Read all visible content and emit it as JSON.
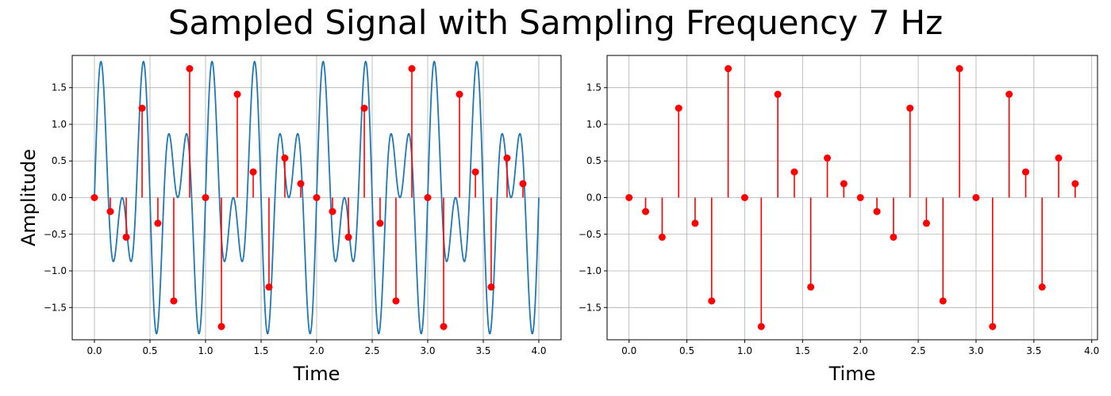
{
  "title": "Sampled Signal with Sampling Frequency 7 Hz",
  "colors": {
    "signal": "#1f77b4",
    "samples": "#ff0000",
    "grid": "#b0b0b0"
  },
  "chart_data": [
    {
      "type": "line",
      "panel": "left",
      "xlabel": "Time",
      "ylabel": "Amplitude",
      "xlim": [
        -0.2,
        4.2
      ],
      "ylim": [
        -1.94,
        1.94
      ],
      "xticks": [
        0.0,
        0.5,
        1.0,
        1.5,
        2.0,
        2.5,
        3.0,
        3.5,
        4.0
      ],
      "xtick_labels": [
        "0.0",
        "0.5",
        "1.0",
        "1.5",
        "2.0",
        "2.5",
        "3.0",
        "3.5",
        "4.0"
      ],
      "yticks": [
        -1.5,
        -1.0,
        -0.5,
        0.0,
        0.5,
        1.0,
        1.5
      ],
      "ytick_labels": [
        "−1.5",
        "−1.0",
        "−0.5",
        "0.0",
        "0.5",
        "1.0",
        "1.5"
      ],
      "grid": true,
      "series": [
        {
          "kind": "continuous-signal",
          "color": "#1f77b4",
          "x_range": [
            0,
            4
          ],
          "components": [
            {
              "amplitude": 1,
              "frequency_hz": 3
            },
            {
              "amplitude": 1,
              "frequency_hz": 5
            }
          ]
        },
        {
          "kind": "stem",
          "color": "#ff0000",
          "x": [
            0.0,
            0.143,
            0.286,
            0.429,
            0.571,
            0.714,
            0.857,
            1.0,
            1.143,
            1.286,
            1.429,
            1.571,
            1.714,
            1.857,
            2.0,
            2.143,
            2.286,
            2.429,
            2.571,
            2.714,
            2.857,
            3.0,
            3.143,
            3.286,
            3.429,
            3.571,
            3.714,
            3.857
          ],
          "y": [
            0.0,
            -0.19,
            -0.54,
            1.22,
            -0.35,
            -1.41,
            1.76,
            0.0,
            -1.76,
            1.41,
            0.35,
            -1.22,
            0.54,
            0.19,
            0.0,
            -0.19,
            -0.54,
            1.22,
            -0.35,
            -1.41,
            1.76,
            0.0,
            -1.76,
            1.41,
            0.35,
            -1.22,
            0.54,
            0.19
          ]
        }
      ]
    },
    {
      "type": "stem",
      "panel": "right",
      "xlabel": "Time",
      "ylabel": "",
      "xlim": [
        -0.19,
        4.05
      ],
      "ylim": [
        -1.94,
        1.94
      ],
      "xticks": [
        0.0,
        0.5,
        1.0,
        1.5,
        2.0,
        2.5,
        3.0,
        3.5,
        4.0
      ],
      "xtick_labels": [
        "0.0",
        "0.5",
        "1.0",
        "1.5",
        "2.0",
        "2.5",
        "3.0",
        "3.5",
        "4.0"
      ],
      "yticks": [
        -1.5,
        -1.0,
        -0.5,
        0.0,
        0.5,
        1.0,
        1.5
      ],
      "ytick_labels": [
        "−1.5",
        "−1.0",
        "−0.5",
        "0.0",
        "0.5",
        "1.0",
        "1.5"
      ],
      "grid": true,
      "series": [
        {
          "kind": "stem",
          "color": "#ff0000",
          "x": [
            0.0,
            0.143,
            0.286,
            0.429,
            0.571,
            0.714,
            0.857,
            1.0,
            1.143,
            1.286,
            1.429,
            1.571,
            1.714,
            1.857,
            2.0,
            2.143,
            2.286,
            2.429,
            2.571,
            2.714,
            2.857,
            3.0,
            3.143,
            3.286,
            3.429,
            3.571,
            3.714,
            3.857
          ],
          "y": [
            0.0,
            -0.19,
            -0.54,
            1.22,
            -0.35,
            -1.41,
            1.76,
            0.0,
            -1.76,
            1.41,
            0.35,
            -1.22,
            0.54,
            0.19,
            0.0,
            -0.19,
            -0.54,
            1.22,
            -0.35,
            -1.41,
            1.76,
            0.0,
            -1.76,
            1.41,
            0.35,
            -1.22,
            0.54,
            0.19
          ]
        }
      ]
    }
  ]
}
